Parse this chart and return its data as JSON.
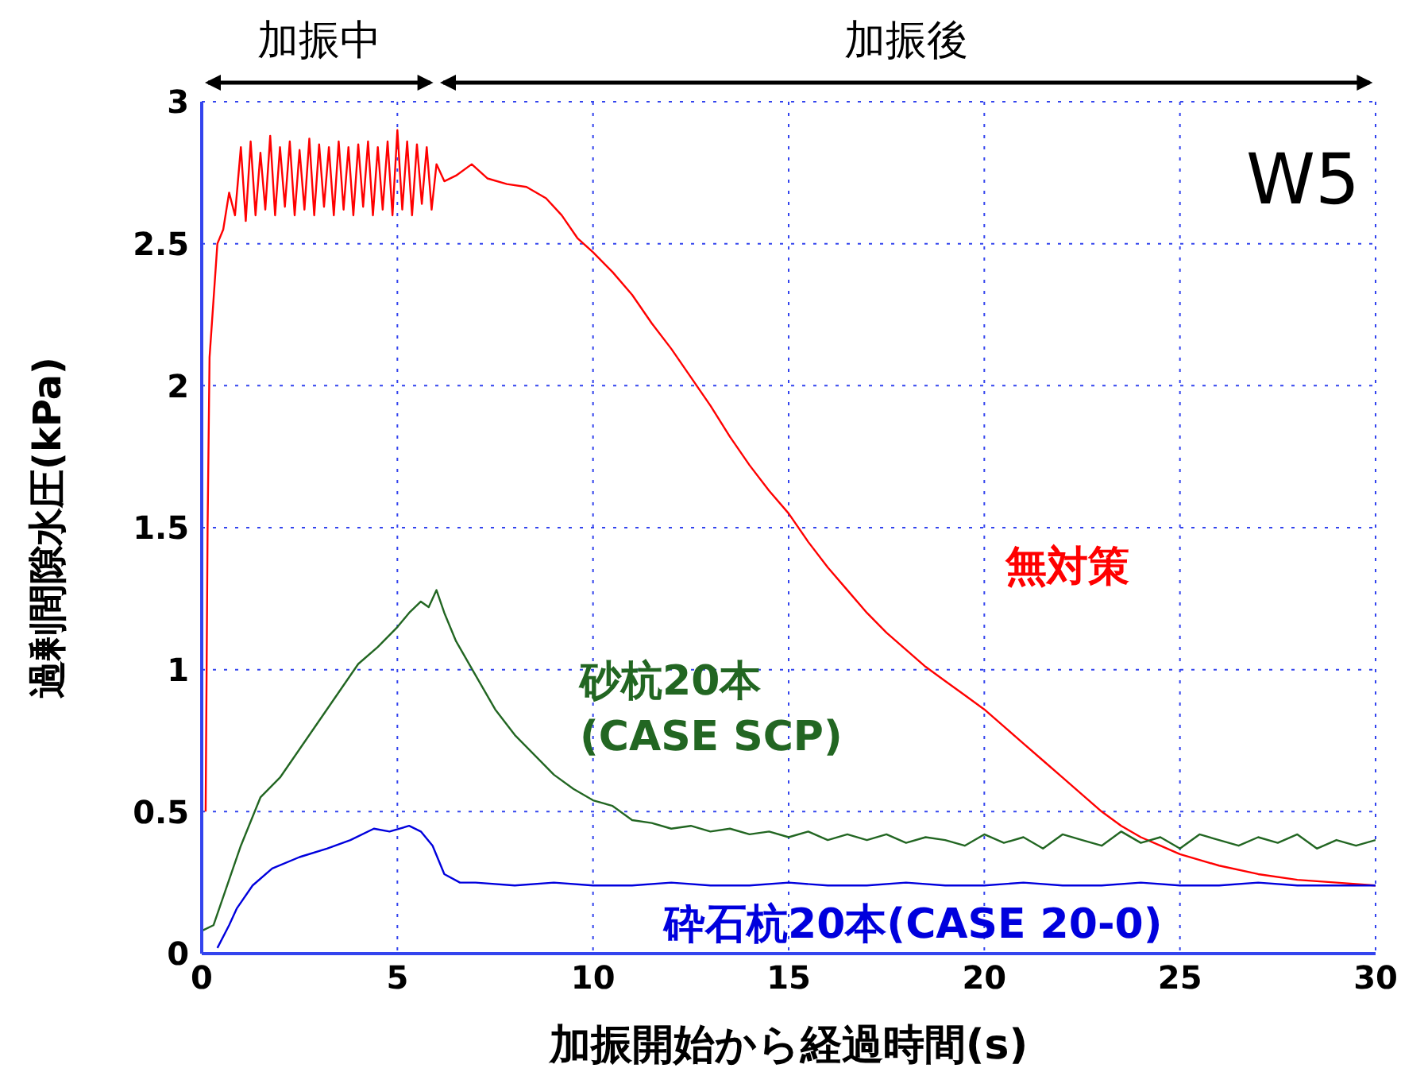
{
  "chart_data": {
    "type": "line",
    "xlabel": "加振開始から経過時間(s)",
    "ylabel": "過剰間隙水圧(kPa)",
    "xlim": [
      0,
      30
    ],
    "xticks": [
      0,
      5,
      10,
      15,
      20,
      25,
      30
    ],
    "ylim": [
      0,
      3
    ],
    "yticks": [
      0,
      0.5,
      1,
      1.5,
      2,
      2.5,
      3
    ],
    "grid": true,
    "annotations": [
      "加振中",
      "加振後",
      "W5"
    ],
    "series": [
      {
        "name": "無対策",
        "color": "#ff0000",
        "x": [
          0.1,
          0.15,
          0.2,
          0.3,
          0.4,
          0.55,
          0.7,
          0.85,
          1.0,
          1.125,
          1.25,
          1.375,
          1.5,
          1.625,
          1.75,
          1.875,
          2.0,
          2.125,
          2.25,
          2.375,
          2.5,
          2.625,
          2.75,
          2.875,
          3.0,
          3.125,
          3.25,
          3.375,
          3.5,
          3.625,
          3.75,
          3.875,
          4.0,
          4.125,
          4.25,
          4.375,
          4.5,
          4.625,
          4.75,
          4.875,
          5.0,
          5.125,
          5.25,
          5.375,
          5.5,
          5.625,
          5.75,
          5.875,
          6.0,
          6.2,
          6.5,
          6.9,
          7.3,
          7.8,
          8.3,
          8.8,
          9.2,
          9.6,
          10,
          10.5,
          11,
          11.5,
          12,
          12.5,
          13,
          13.5,
          14,
          14.5,
          15,
          15.5,
          16,
          16.5,
          17,
          17.5,
          18,
          18.5,
          19,
          19.5,
          20,
          20.5,
          21,
          21.5,
          22,
          22.5,
          23,
          23.5,
          24,
          24.5,
          25,
          26,
          27,
          28,
          29,
          30
        ],
        "values": [
          0.5,
          1.5,
          2.1,
          2.3,
          2.5,
          2.55,
          2.68,
          2.6,
          2.84,
          2.58,
          2.86,
          2.6,
          2.82,
          2.62,
          2.88,
          2.6,
          2.84,
          2.63,
          2.86,
          2.6,
          2.83,
          2.62,
          2.87,
          2.6,
          2.85,
          2.63,
          2.84,
          2.6,
          2.86,
          2.62,
          2.84,
          2.6,
          2.85,
          2.63,
          2.86,
          2.6,
          2.84,
          2.62,
          2.86,
          2.6,
          2.9,
          2.62,
          2.86,
          2.6,
          2.85,
          2.64,
          2.84,
          2.62,
          2.78,
          2.72,
          2.74,
          2.78,
          2.73,
          2.71,
          2.7,
          2.66,
          2.6,
          2.52,
          2.47,
          2.4,
          2.32,
          2.22,
          2.13,
          2.03,
          1.93,
          1.82,
          1.72,
          1.63,
          1.55,
          1.45,
          1.36,
          1.28,
          1.2,
          1.13,
          1.07,
          1.01,
          0.96,
          0.91,
          0.86,
          0.8,
          0.74,
          0.68,
          0.62,
          0.56,
          0.5,
          0.45,
          0.41,
          0.38,
          0.35,
          0.31,
          0.28,
          0.26,
          0.25,
          0.24
        ]
      },
      {
        "name": "砂杭20本\n(CASE SCP)",
        "color": "#226622",
        "x": [
          0,
          0.3,
          0.6,
          1.0,
          1.5,
          2.0,
          2.5,
          3.0,
          3.5,
          4.0,
          4.5,
          5.0,
          5.3,
          5.6,
          5.8,
          6.0,
          6.2,
          6.5,
          7.0,
          7.5,
          8.0,
          8.5,
          9.0,
          9.5,
          10,
          10.5,
          11,
          11.5,
          12,
          12.5,
          13,
          13.5,
          14,
          14.5,
          15,
          15.5,
          16,
          16.5,
          17,
          17.5,
          18,
          18.5,
          19,
          19.5,
          20,
          20.5,
          21,
          21.5,
          22,
          22.5,
          23,
          23.5,
          24,
          24.5,
          25,
          25.5,
          26,
          26.5,
          27,
          27.5,
          28,
          28.5,
          29,
          29.5,
          30
        ],
        "values": [
          0.08,
          0.1,
          0.22,
          0.38,
          0.55,
          0.62,
          0.72,
          0.82,
          0.92,
          1.02,
          1.08,
          1.15,
          1.2,
          1.24,
          1.22,
          1.28,
          1.2,
          1.1,
          0.98,
          0.86,
          0.77,
          0.7,
          0.63,
          0.58,
          0.54,
          0.52,
          0.47,
          0.46,
          0.44,
          0.45,
          0.43,
          0.44,
          0.42,
          0.43,
          0.41,
          0.43,
          0.4,
          0.42,
          0.4,
          0.42,
          0.39,
          0.41,
          0.4,
          0.38,
          0.42,
          0.39,
          0.41,
          0.37,
          0.42,
          0.4,
          0.38,
          0.43,
          0.39,
          0.41,
          0.37,
          0.42,
          0.4,
          0.38,
          0.41,
          0.39,
          0.42,
          0.37,
          0.4,
          0.38,
          0.4
        ]
      },
      {
        "name": "砕石杭20本(CASE 20-0)",
        "color": "#0000dd",
        "x": [
          0.4,
          0.7,
          0.9,
          1.3,
          1.8,
          2.5,
          3.2,
          3.8,
          4.4,
          4.8,
          5.3,
          5.6,
          5.9,
          6.2,
          6.6,
          7.0,
          8,
          9,
          10,
          11,
          12,
          13,
          14,
          15,
          16,
          17,
          18,
          19,
          20,
          21,
          22,
          23,
          24,
          25,
          26,
          27,
          28,
          29,
          30
        ],
        "values": [
          0.02,
          0.1,
          0.16,
          0.24,
          0.3,
          0.34,
          0.37,
          0.4,
          0.44,
          0.43,
          0.45,
          0.43,
          0.38,
          0.28,
          0.25,
          0.25,
          0.24,
          0.25,
          0.24,
          0.24,
          0.25,
          0.24,
          0.24,
          0.25,
          0.24,
          0.24,
          0.25,
          0.24,
          0.24,
          0.25,
          0.24,
          0.24,
          0.25,
          0.24,
          0.24,
          0.25,
          0.24,
          0.24,
          0.24
        ]
      }
    ]
  }
}
